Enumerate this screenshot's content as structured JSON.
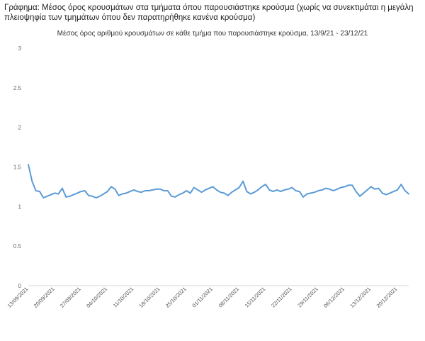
{
  "heading": "Γράφημα: Μέσος όρος κρουσμάτων στα τμήματα όπου παρουσιάστηκε κρούσμα (χωρίς να συνεκτιμάται η μεγάλη πλειοψηφία των τμημάτων όπου δεν παρατηρήθηκε κανένα κρούσμα)",
  "chart_data": {
    "type": "line",
    "title": "Μέσος όρος αριθμού κρουσμάτων σε κάθε τμήμα που παρουσιάστηκε κρούσμα, 13/9/21 - 23/12/21",
    "xlabel": "",
    "ylabel": "",
    "ylim": [
      0,
      3
    ],
    "yticks": [
      "0",
      "0.5",
      "1",
      "1.5",
      "2",
      "2.5",
      "3"
    ],
    "ytick_values": [
      0,
      0.5,
      1,
      1.5,
      2,
      2.5,
      3
    ],
    "xticks": [
      "13/09/2021",
      "20/09/2021",
      "27/09/2021",
      "04/10/2021",
      "11/10/2021",
      "18/10/2021",
      "25/10/2021",
      "01/11/2021",
      "08/11/2021",
      "15/11/2021",
      "22/11/2021",
      "29/11/2021",
      "06/12/2021",
      "13/12/2021",
      "20/12/2021"
    ],
    "x_start": "2021-09-13",
    "x_end": "2021-12-23",
    "line_color": "#5b9bd5",
    "grid": false,
    "series": [
      {
        "values": [
          [
            0,
            1.53
          ],
          [
            1,
            1.32
          ],
          [
            2,
            1.2
          ],
          [
            3,
            1.19
          ],
          [
            4,
            1.11
          ],
          [
            5,
            1.13
          ],
          [
            6,
            1.15
          ],
          [
            7,
            1.17
          ],
          [
            8,
            1.16
          ],
          [
            9,
            1.23
          ],
          [
            10,
            1.12
          ],
          [
            11,
            1.13
          ],
          [
            12,
            1.15
          ],
          [
            13,
            1.17
          ],
          [
            14,
            1.19
          ],
          [
            15,
            1.2
          ],
          [
            16,
            1.14
          ],
          [
            17,
            1.13
          ],
          [
            18,
            1.11
          ],
          [
            19,
            1.13
          ],
          [
            20,
            1.16
          ],
          [
            21,
            1.19
          ],
          [
            22,
            1.25
          ],
          [
            23,
            1.22
          ],
          [
            24,
            1.14
          ],
          [
            25,
            1.16
          ],
          [
            26,
            1.17
          ],
          [
            27,
            1.19
          ],
          [
            28,
            1.21
          ],
          [
            29,
            1.19
          ],
          [
            30,
            1.18
          ],
          [
            31,
            1.2
          ],
          [
            32,
            1.2
          ],
          [
            33,
            1.21
          ],
          [
            34,
            1.22
          ],
          [
            35,
            1.22
          ],
          [
            36,
            1.2
          ],
          [
            37,
            1.2
          ],
          [
            38,
            1.13
          ],
          [
            39,
            1.12
          ],
          [
            40,
            1.15
          ],
          [
            41,
            1.17
          ],
          [
            42,
            1.2
          ],
          [
            43,
            1.17
          ],
          [
            44,
            1.24
          ],
          [
            45,
            1.21
          ],
          [
            46,
            1.18
          ],
          [
            47,
            1.21
          ],
          [
            48,
            1.23
          ],
          [
            49,
            1.25
          ],
          [
            50,
            1.21
          ],
          [
            51,
            1.18
          ],
          [
            52,
            1.17
          ],
          [
            53,
            1.14
          ],
          [
            54,
            1.18
          ],
          [
            55,
            1.21
          ],
          [
            56,
            1.24
          ],
          [
            57,
            1.32
          ],
          [
            58,
            1.19
          ],
          [
            59,
            1.16
          ],
          [
            60,
            1.18
          ],
          [
            61,
            1.21
          ],
          [
            62,
            1.25
          ],
          [
            63,
            1.28
          ],
          [
            64,
            1.21
          ],
          [
            65,
            1.19
          ],
          [
            66,
            1.21
          ],
          [
            67,
            1.19
          ],
          [
            68,
            1.21
          ],
          [
            69,
            1.22
          ],
          [
            70,
            1.24
          ],
          [
            71,
            1.2
          ],
          [
            72,
            1.19
          ],
          [
            73,
            1.12
          ],
          [
            74,
            1.16
          ],
          [
            75,
            1.17
          ],
          [
            76,
            1.18
          ],
          [
            77,
            1.2
          ],
          [
            78,
            1.21
          ],
          [
            79,
            1.23
          ],
          [
            80,
            1.22
          ],
          [
            81,
            1.2
          ],
          [
            82,
            1.22
          ],
          [
            83,
            1.24
          ],
          [
            84,
            1.25
          ],
          [
            85,
            1.27
          ],
          [
            86,
            1.27
          ],
          [
            87,
            1.19
          ],
          [
            88,
            1.13
          ],
          [
            89,
            1.17
          ],
          [
            90,
            1.21
          ],
          [
            91,
            1.25
          ],
          [
            92,
            1.22
          ],
          [
            93,
            1.23
          ],
          [
            94,
            1.17
          ],
          [
            95,
            1.15
          ],
          [
            96,
            1.17
          ],
          [
            97,
            1.19
          ],
          [
            98,
            1.21
          ],
          [
            99,
            1.28
          ],
          [
            100,
            1.2
          ],
          [
            101,
            1.16
          ]
        ]
      }
    ]
  }
}
